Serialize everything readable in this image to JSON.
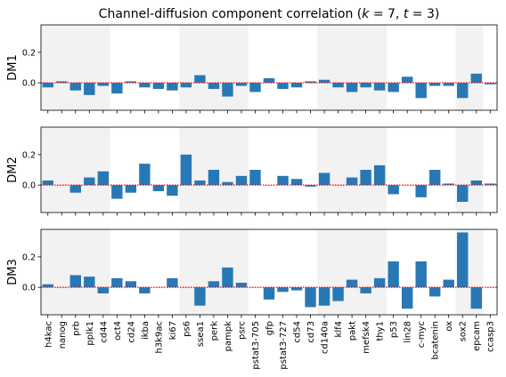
{
  "chart_data": {
    "type": "bar",
    "title": "Channel-diffusion component correlation ($k=7$, $t=3$)",
    "title_parts": {
      "prefix": "Channel-diffusion component correlation (",
      "k_sym": "k",
      "k_eq": " = 7, ",
      "t_sym": "t",
      "t_eq": " = 3)"
    },
    "bar_color": "#2878b5",
    "zero_line_color": "#ff0000",
    "shade_color": "#f2f2f2",
    "shaded_groups": [
      [
        0,
        4
      ],
      [
        10,
        14
      ],
      [
        20,
        24
      ],
      [
        30,
        31
      ]
    ],
    "yticks": [
      0.0,
      0.2
    ],
    "ytick_labels": [
      "0.0",
      "0.2"
    ],
    "ylim": [
      -0.18,
      0.38
    ],
    "categories": [
      "h4kac",
      "nanog",
      "prb",
      "pplk1",
      "cd44",
      "oct4",
      "cd24",
      "ikba",
      "h3k9ac",
      "ki67",
      "ps6",
      "ssea1",
      "perk",
      "pampk",
      "psrc",
      "pstat3-705",
      "gfp",
      "pstat3-727",
      "cd54",
      "cd73",
      "cd140a",
      "klf4",
      "pakt",
      "mefsk4",
      "thy1",
      "p53",
      "lin28",
      "c-myc",
      "bcatenin",
      "ox",
      "sox2",
      "epcam",
      "ccasp3"
    ],
    "series": [
      {
        "name": "DM1",
        "values": [
          -0.03,
          0.01,
          -0.05,
          -0.08,
          -0.02,
          -0.07,
          0.01,
          -0.03,
          -0.04,
          -0.05,
          -0.03,
          0.05,
          -0.04,
          -0.09,
          -0.02,
          -0.06,
          0.03,
          -0.04,
          -0.03,
          0.01,
          0.02,
          -0.03,
          -0.06,
          -0.03,
          -0.05,
          -0.06,
          0.04,
          -0.1,
          -0.02,
          -0.02,
          -0.1,
          0.06,
          -0.01
        ]
      },
      {
        "name": "DM2",
        "values": [
          0.03,
          0.0,
          -0.05,
          0.05,
          0.09,
          -0.09,
          -0.05,
          0.14,
          -0.04,
          -0.07,
          0.2,
          0.03,
          0.1,
          0.02,
          0.06,
          0.1,
          0.0,
          0.06,
          0.04,
          -0.01,
          0.08,
          0.0,
          0.05,
          0.1,
          0.13,
          -0.06,
          0.0,
          -0.08,
          0.1,
          0.01,
          -0.11,
          0.03,
          0.01
        ]
      },
      {
        "name": "DM3",
        "values": [
          0.02,
          0.0,
          0.08,
          0.07,
          -0.04,
          0.06,
          0.04,
          -0.04,
          0.0,
          0.06,
          0.0,
          -0.12,
          0.04,
          0.13,
          0.03,
          0.0,
          -0.08,
          -0.03,
          -0.02,
          -0.13,
          -0.12,
          -0.09,
          0.05,
          -0.04,
          0.06,
          0.17,
          -0.14,
          0.17,
          -0.06,
          0.05,
          0.36,
          -0.14,
          0.0
        ]
      }
    ]
  }
}
